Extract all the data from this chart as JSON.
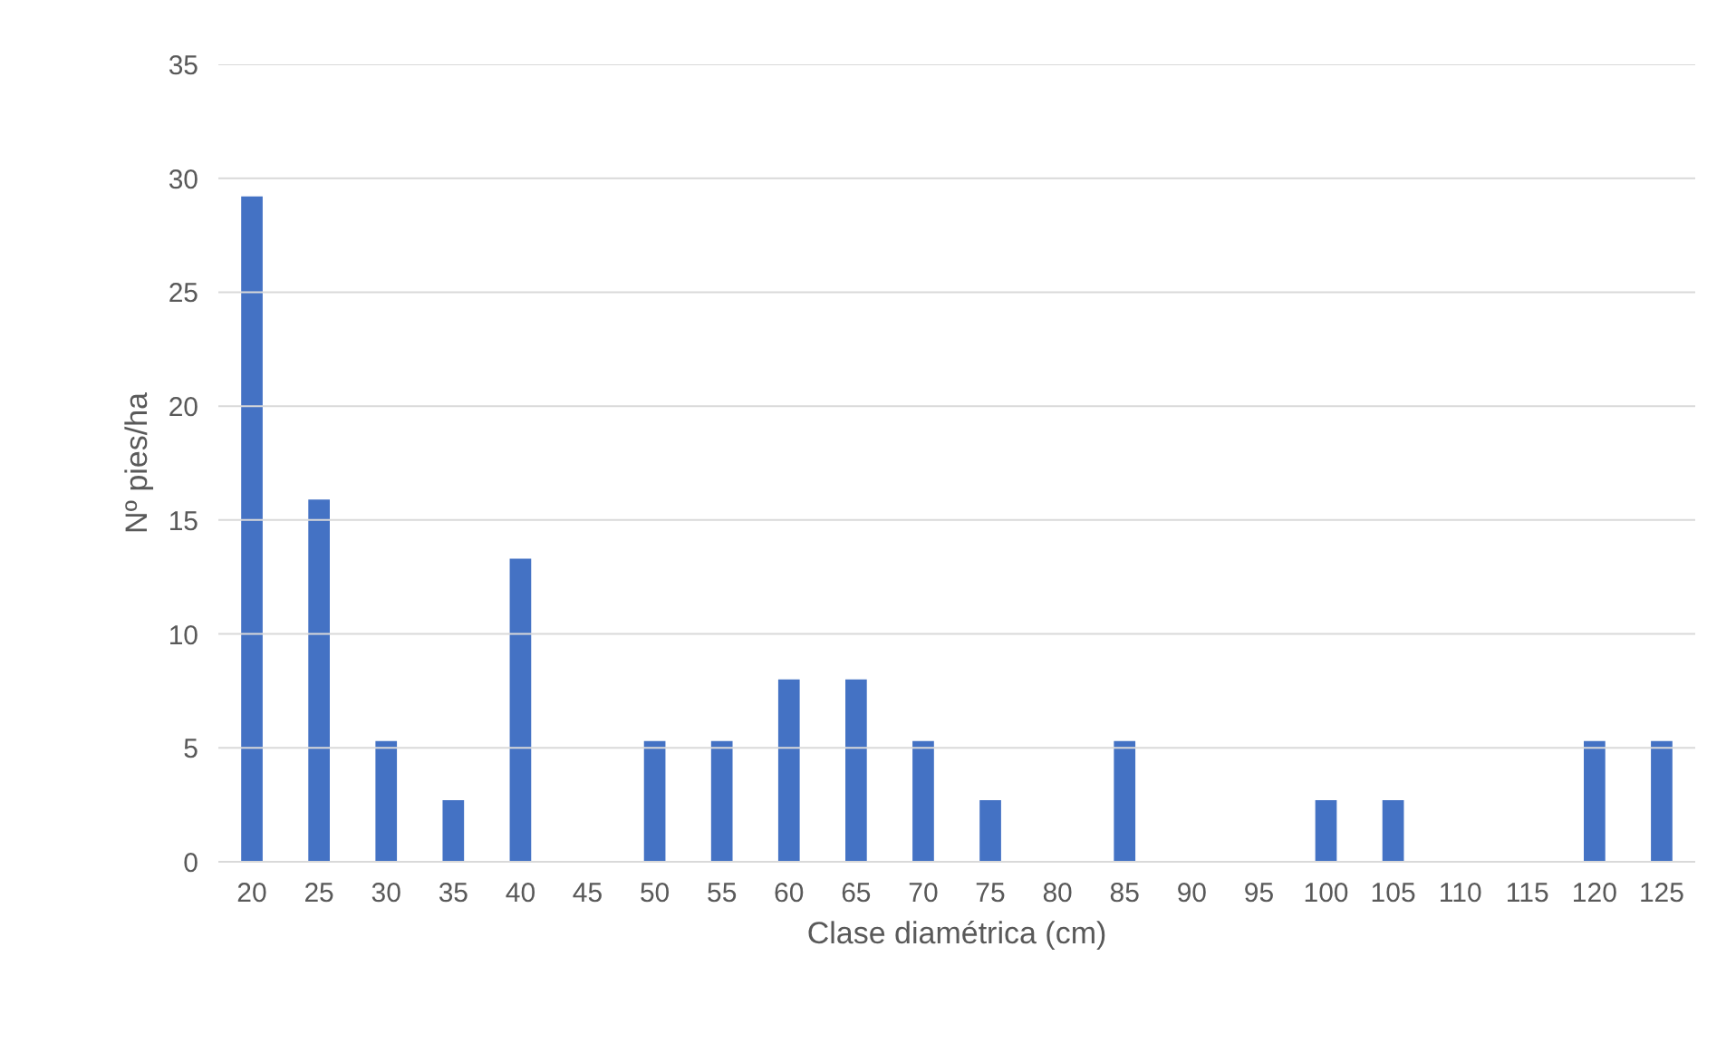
{
  "chart_data": {
    "type": "bar",
    "xlabel": "Clase diamétrica (cm)",
    "ylabel": "Nº pies/ha",
    "categories": [
      "20",
      "25",
      "30",
      "35",
      "40",
      "45",
      "50",
      "55",
      "60",
      "65",
      "70",
      "75",
      "80",
      "85",
      "90",
      "95",
      "100",
      "105",
      "110",
      "115",
      "120",
      "125"
    ],
    "values": [
      29.2,
      15.9,
      5.3,
      2.7,
      13.3,
      0,
      5.3,
      5.3,
      8.0,
      8.0,
      5.3,
      2.7,
      0,
      5.3,
      0,
      0,
      2.7,
      2.7,
      0,
      0,
      5.3,
      5.3
    ],
    "color": "#4472c4",
    "ylim": [
      0,
      35
    ],
    "yticks": [
      0,
      5,
      10,
      15,
      20,
      25,
      30,
      35
    ],
    "grid": "y"
  }
}
